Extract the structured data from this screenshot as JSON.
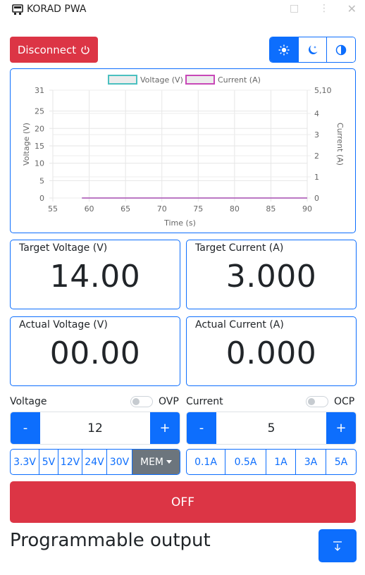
{
  "app": {
    "title": "KORAD PWA"
  },
  "toolbar": {
    "disconnect_label": "Disconnect"
  },
  "theme": {
    "options": [
      "light",
      "dark",
      "auto"
    ],
    "selected": "light"
  },
  "chart_data": {
    "type": "line",
    "xlabel": "Time (s)",
    "ylabel": "Voltage (V)",
    "y2label": "Current (A)",
    "xlim": [
      55,
      90
    ],
    "ylim": [
      0,
      31
    ],
    "y2lim": [
      0,
      5.1
    ],
    "x_ticks": [
      "55",
      "60",
      "65",
      "70",
      "75",
      "80",
      "85",
      "90"
    ],
    "y_ticks": [
      "0",
      "5",
      "10",
      "15",
      "20",
      "25",
      "31"
    ],
    "y2_ticks": [
      "0",
      "1",
      "2",
      "3",
      "4",
      "5,10"
    ],
    "legend_position": "top",
    "series": [
      {
        "name": "Voltage (V)",
        "axis": "left",
        "color": "#4bc0c0",
        "x": [
          59,
          90
        ],
        "values": [
          0,
          0
        ]
      },
      {
        "name": "Current (A)",
        "axis": "right",
        "color": "#c848b8",
        "x": [
          59,
          90
        ],
        "values": [
          0,
          0
        ]
      }
    ],
    "grid": true
  },
  "readouts": {
    "target_voltage": {
      "label": "Target Voltage (V)",
      "value": "14.00"
    },
    "target_current": {
      "label": "Target Current (A)",
      "value": "3.000"
    },
    "actual_voltage": {
      "label": "Actual Voltage (V)",
      "value": "00.00"
    },
    "actual_current": {
      "label": "Actual Current (A)",
      "value": "0.000"
    }
  },
  "voltage_ctl": {
    "label": "Voltage",
    "protect_label": "OVP",
    "protect_on": false,
    "minus": "-",
    "plus": "+",
    "value": "12",
    "presets": [
      "3.3V",
      "5V",
      "12V",
      "24V",
      "30V"
    ],
    "mem_label": "MEM"
  },
  "current_ctl": {
    "label": "Current",
    "protect_label": "OCP",
    "protect_on": false,
    "minus": "-",
    "plus": "+",
    "value": "5",
    "presets": [
      "0.1A",
      "0.5A",
      "1A",
      "3A",
      "5A"
    ]
  },
  "output": {
    "label": "OFF"
  },
  "program": {
    "title": "Programmable output"
  },
  "colors": {
    "primary": "#0d6efd",
    "danger": "#dc3545",
    "secondary": "#6c757d"
  }
}
